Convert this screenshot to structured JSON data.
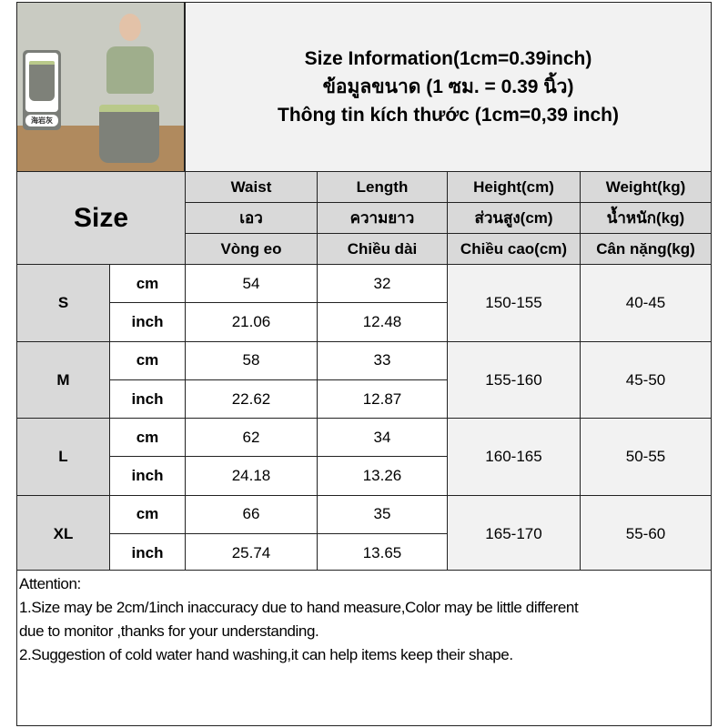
{
  "title_lines": [
    "Size Information(1cm=0.39inch)",
    "ข้อมูลขนาด (1 ซม. = 0.39 นิ้ว)",
    "Thông tin kích thước (1cm=0,39 inch)"
  ],
  "product_image": {
    "swatch_label": "海岩灰",
    "colors": {
      "top": "#9fae8c",
      "shorts": "#7e8179",
      "waistband": "#b9c98a"
    }
  },
  "size_header": "Size",
  "columns": [
    {
      "en": "Waist",
      "th": "เอว",
      "vi": "Vòng eo"
    },
    {
      "en": "Length",
      "th": "ความยาว",
      "vi": "Chiều dài"
    },
    {
      "en": "Height(cm)",
      "th": "ส่วนสูง(cm)",
      "vi": "Chiều cao(cm)"
    },
    {
      "en": "Weight(kg)",
      "th": "น้ำหนัก(kg)",
      "vi": "Cân nặng(kg)"
    }
  ],
  "unit_labels": {
    "cm": "cm",
    "inch": "inch"
  },
  "rows": [
    {
      "size": "S",
      "waist_cm": "54",
      "length_cm": "32",
      "waist_in": "21.06",
      "length_in": "12.48",
      "height": "150-155",
      "weight": "40-45"
    },
    {
      "size": "M",
      "waist_cm": "58",
      "length_cm": "33",
      "waist_in": "22.62",
      "length_in": "12.87",
      "height": "155-160",
      "weight": "45-50"
    },
    {
      "size": "L",
      "waist_cm": "62",
      "length_cm": "34",
      "waist_in": "24.18",
      "length_in": "13.26",
      "height": "160-165",
      "weight": "50-55"
    },
    {
      "size": "XL",
      "waist_cm": "66",
      "length_cm": "35",
      "waist_in": "25.74",
      "length_in": "13.65",
      "height": "165-170",
      "weight": "55-60"
    }
  ],
  "attention": {
    "heading": "Attention:",
    "lines": [
      "1.Size may be 2cm/1inch inaccuracy due to hand measure,Color may be little different",
      "due to monitor ,thanks for your understanding.",
      "2.Suggestion of cold water hand washing,it can help items keep their shape."
    ]
  }
}
